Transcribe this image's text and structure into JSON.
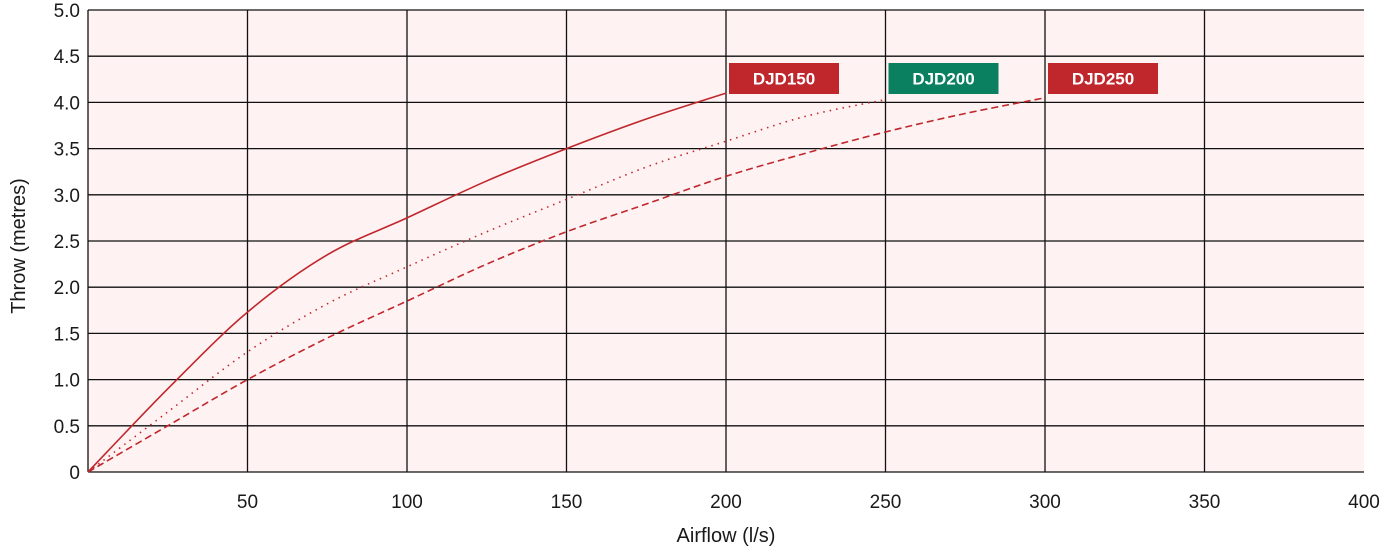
{
  "chart_data": {
    "type": "line",
    "title": "",
    "xlabel": "Airflow (l/s)",
    "ylabel": "Throw (metres)",
    "xlim": [
      0,
      400
    ],
    "ylim": [
      0,
      5.0
    ],
    "grid": true,
    "x_ticks": [
      "50",
      "100",
      "150",
      "200",
      "250",
      "300",
      "350",
      "400"
    ],
    "y_ticks": [
      "0",
      "0.5",
      "1.0",
      "1.5",
      "2.0",
      "2.5",
      "3.0",
      "3.5",
      "4.0",
      "4.5",
      "5.0"
    ],
    "series": [
      {
        "name": "DJD150",
        "style": "solid",
        "color": "#c0272d",
        "tag_color": "#c0272d",
        "x": [
          0,
          25,
          50,
          75,
          100,
          125,
          150,
          175,
          200
        ],
        "y": [
          0,
          0.9,
          1.73,
          2.35,
          2.75,
          3.15,
          3.5,
          3.82,
          4.1
        ]
      },
      {
        "name": "DJD200",
        "style": "dotted",
        "color": "#c0272d",
        "tag_color": "#0a8060",
        "x": [
          0,
          25,
          50,
          75,
          100,
          125,
          150,
          175,
          200,
          225,
          250
        ],
        "y": [
          0,
          0.65,
          1.3,
          1.82,
          2.22,
          2.6,
          2.95,
          3.3,
          3.58,
          3.85,
          4.03
        ]
      },
      {
        "name": "DJD250",
        "style": "dashed",
        "color": "#c0272d",
        "tag_color": "#c0272d",
        "x": [
          0,
          25,
          50,
          75,
          100,
          125,
          150,
          175,
          200,
          225,
          250,
          275,
          300
        ],
        "y": [
          0,
          0.5,
          1.0,
          1.45,
          1.85,
          2.25,
          2.6,
          2.9,
          3.2,
          3.45,
          3.68,
          3.88,
          4.05
        ]
      }
    ]
  }
}
